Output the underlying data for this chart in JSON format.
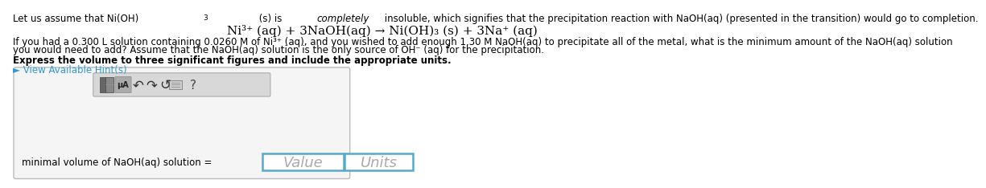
{
  "bg_color": "#ffffff",
  "fs_main": 8.5,
  "fs_eq": 11.0,
  "fs_bold": 8.5,
  "fs_hint": 8.5,
  "fs_label": 8.5,
  "fs_value": 13,
  "line1_pre": "Let us assume that Ni(OH)",
  "line1_sub": "3",
  "line1_mid": " (s) is ",
  "line1_italic": "completely",
  "line1_rest": " insoluble, which signifies that the precipitation reaction with NaOH(aq) (presented in the transition) would go to completion.",
  "eq_text": "Ni³⁺ (aq) + 3NaOH(aq) → Ni(OH)₃ (s) + 3Na⁺ (aq)",
  "para1": "If you had a 0.300 L solution containing 0.0260 M of Ni³⁺ (aq), and you wished to add enough 1.30 M NaOH(aq) to precipitate all of the metal, what is the minimum amount of the NaOH(aq) solution",
  "para2": "you would need to add? Assume that the NaOH(aq) solution is the only source of OH⁻ (aq) for the precipitation.",
  "bold_line": "Express the volume to three significant figures and include the appropriate units.",
  "hint_text": "► View Available Hint(s)",
  "hint_color": "#3399cc",
  "label_text": "minimal volume of NaOH(aq) solution =",
  "value_placeholder": "Value",
  "units_placeholder": "Units",
  "box_border_color": "#55aacc",
  "placeholder_color": "#aaaaaa",
  "outer_box_border": "#bbbbbb",
  "outer_box_fill": "#f5f5f5",
  "toolbar_fill": "#d8d8d8",
  "toolbar_border": "#aaaaaa",
  "icon1_fill": "#888888",
  "icon1_dark": "#555555",
  "icon2_fill": "#aaaaaa",
  "icon_text_color": "#333333"
}
